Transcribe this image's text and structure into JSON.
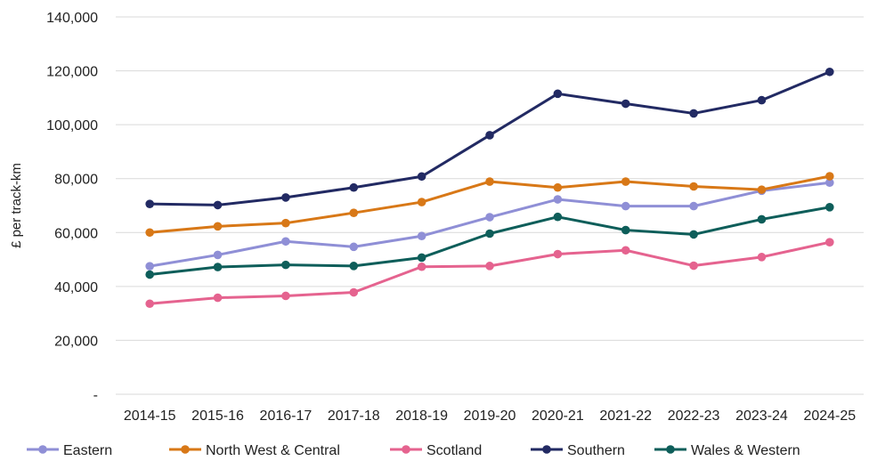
{
  "chart_data": {
    "type": "line",
    "ylabel": "£ per track-km",
    "ylim": [
      0,
      140000
    ],
    "yticks": [
      {
        "value": 0,
        "label": "-"
      },
      {
        "value": 20000,
        "label": "20,000"
      },
      {
        "value": 40000,
        "label": "40,000"
      },
      {
        "value": 60000,
        "label": "60,000"
      },
      {
        "value": 80000,
        "label": "80,000"
      },
      {
        "value": 100000,
        "label": "100,000"
      },
      {
        "value": 120000,
        "label": "120,000"
      },
      {
        "value": 140000,
        "label": "140,000"
      }
    ],
    "grid": true,
    "legend_position": "bottom",
    "categories": [
      "2014-15",
      "2015-16",
      "2016-17",
      "2017-18",
      "2018-19",
      "2019-20",
      "2020-21",
      "2021-22",
      "2022-23",
      "2023-24",
      "2024-25"
    ],
    "series": [
      {
        "name": "Eastern",
        "color": "#8F8FD6",
        "values": [
          47500,
          51700,
          56700,
          54700,
          58700,
          65700,
          72300,
          69800,
          69800,
          75500,
          78500
        ]
      },
      {
        "name": "North West & Central",
        "color": "#D87817",
        "values": [
          60000,
          62300,
          63500,
          67300,
          71300,
          78900,
          76700,
          78900,
          77100,
          75900,
          80900
        ]
      },
      {
        "name": "Scotland",
        "color": "#E5638F",
        "values": [
          33600,
          35800,
          36500,
          37800,
          47300,
          47600,
          52000,
          53400,
          47700,
          50900,
          56400
        ]
      },
      {
        "name": "Southern",
        "color": "#222A63",
        "values": [
          70600,
          70200,
          73000,
          76700,
          80800,
          96100,
          111500,
          107800,
          104200,
          109100,
          119600
        ]
      },
      {
        "name": "Wales & Western",
        "color": "#0E5E5A",
        "values": [
          44400,
          47200,
          48000,
          47600,
          50700,
          59600,
          65800,
          60900,
          59300,
          64900,
          69400
        ]
      }
    ]
  }
}
